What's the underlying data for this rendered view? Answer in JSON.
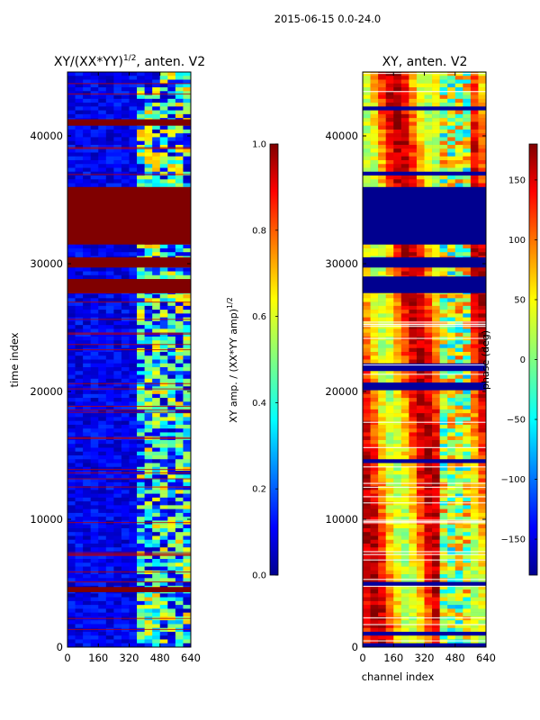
{
  "figure": {
    "suptitle": "2015-06-15 0.0-24.0"
  },
  "chart_data": [
    {
      "type": "heatmap",
      "title": "XY/(XX*YY)^1/2, anten. V2",
      "title_main": "XY/(XX*YY)",
      "title_exp": "1/2",
      "title_tail": ", anten. V2",
      "xlabel": "",
      "ylabel": "time index",
      "xlim": [
        0,
        640
      ],
      "ylim": [
        0,
        45000
      ],
      "xticks": [
        "0",
        "160",
        "320",
        "480",
        "640"
      ],
      "yticks": [
        "0",
        "10000",
        "20000",
        "30000",
        "40000"
      ],
      "colormap": "jet",
      "colorbar": {
        "label_main": "XY amp. / (XX*YY amp)",
        "label_exp": "1/2",
        "range": [
          0.0,
          1.0
        ],
        "ticks": [
          "0.0",
          "0.2",
          "0.4",
          "0.6",
          "0.8",
          "1.0"
        ]
      },
      "saturated_bands": [
        [
          31500,
          36000
        ],
        [
          29700,
          30500
        ],
        [
          27700,
          28800
        ],
        [
          4300,
          4700
        ],
        [
          40800,
          41300
        ]
      ]
    },
    {
      "type": "heatmap",
      "title": "XY, anten. V2",
      "xlabel": "channel index",
      "ylabel": "",
      "xlim": [
        0,
        640
      ],
      "ylim": [
        0,
        45000
      ],
      "xticks": [
        "0",
        "160",
        "320",
        "480",
        "640"
      ],
      "yticks": [
        "0",
        "10000",
        "20000",
        "30000",
        "40000"
      ],
      "colormap": "jet",
      "colorbar": {
        "label": "phase (deg)",
        "range": [
          -180,
          180
        ],
        "ticks": [
          "150",
          "100",
          "50",
          "0",
          "−50",
          "−100",
          "−150"
        ]
      },
      "masked_bands": [
        [
          31500,
          36000
        ],
        [
          29700,
          30500
        ],
        [
          27700,
          29000
        ]
      ]
    }
  ],
  "colors": {
    "jet_dark_blue": "#00008f",
    "jet_blue": "#0000ff",
    "jet_cyan": "#00ffff",
    "jet_yellow": "#ffff00",
    "jet_red": "#ff0000",
    "jet_dark_red": "#800000"
  }
}
